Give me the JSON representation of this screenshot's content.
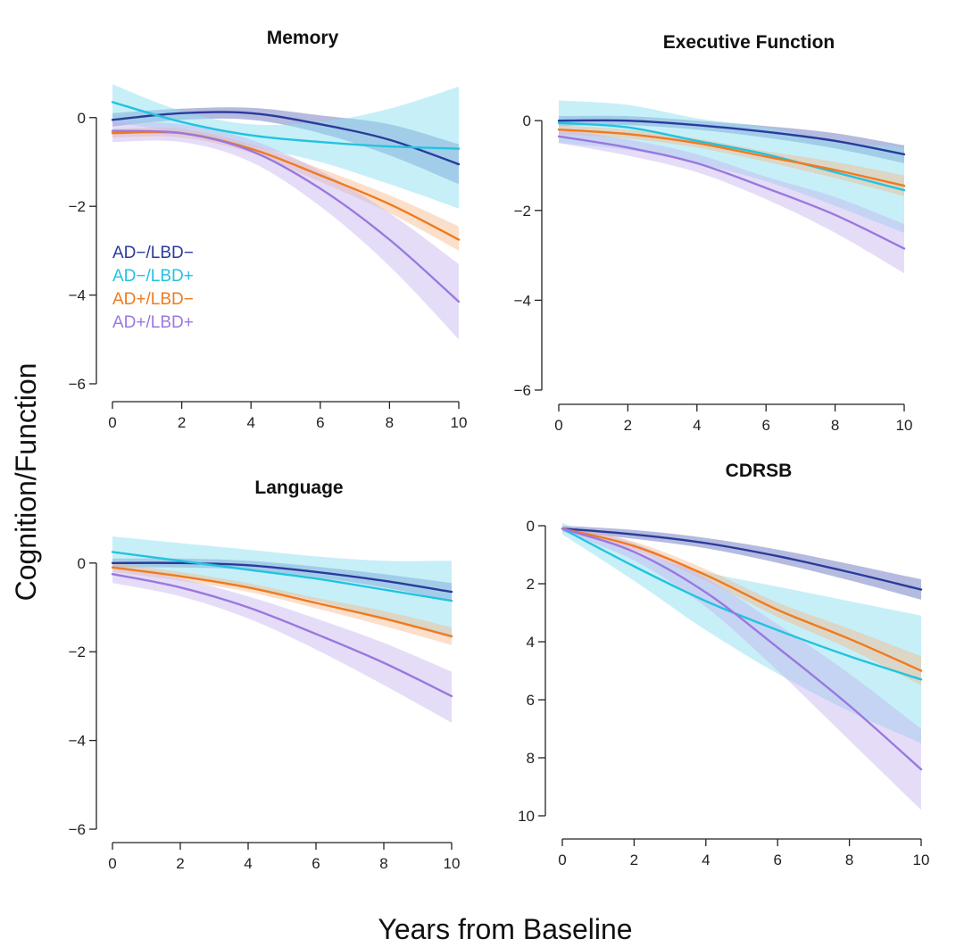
{
  "figure": {
    "ylabel": "Cognition/Function",
    "xlabel": "Years from Baseline"
  },
  "legend": {
    "entries": [
      {
        "label": "AD−/LBD−",
        "color": "#2b3a9c"
      },
      {
        "label": "AD−/LBD+",
        "color": "#22c3e0"
      },
      {
        "label": "AD+/LBD−",
        "color": "#f07a1f"
      },
      {
        "label": "AD+/LBD+",
        "color": "#9a78e0"
      }
    ]
  },
  "chart_data": [
    {
      "type": "line",
      "title": "Memory",
      "xlim": [
        0,
        10
      ],
      "ylim": [
        -6,
        0.8
      ],
      "x_ticks": [
        0,
        2,
        4,
        6,
        8,
        10
      ],
      "y_ticks": [
        0,
        -2,
        -4,
        -6
      ],
      "y_tick_labels": [
        "0",
        "−2",
        "−4",
        "−6"
      ],
      "x": [
        0,
        2,
        4,
        6,
        8,
        10
      ],
      "series": [
        {
          "name": "AD−/LBD−",
          "color": "#2b3a9c",
          "band_color": "#5868b8",
          "values": [
            -0.05,
            0.1,
            0.1,
            -0.15,
            -0.5,
            -1.05
          ],
          "lower": [
            -0.2,
            -0.05,
            -0.05,
            -0.35,
            -0.85,
            -1.5
          ],
          "upper": [
            0.1,
            0.2,
            0.22,
            0.05,
            -0.15,
            -0.6
          ]
        },
        {
          "name": "AD−/LBD+",
          "color": "#22c3e0",
          "band_color": "#8fe0f2",
          "values": [
            0.35,
            -0.1,
            -0.4,
            -0.55,
            -0.65,
            -0.7
          ],
          "lower": [
            -0.1,
            -0.35,
            -0.65,
            -1.0,
            -1.5,
            -2.05
          ],
          "upper": [
            0.75,
            0.15,
            -0.15,
            -0.1,
            0.2,
            0.7
          ]
        },
        {
          "name": "AD+/LBD−",
          "color": "#f07a1f",
          "band_color": "#f7b98a",
          "values": [
            -0.35,
            -0.35,
            -0.7,
            -1.3,
            -1.95,
            -2.75
          ],
          "lower": [
            -0.45,
            -0.45,
            -0.8,
            -1.45,
            -2.15,
            -3.0
          ],
          "upper": [
            -0.25,
            -0.25,
            -0.6,
            -1.15,
            -1.75,
            -2.45
          ]
        },
        {
          "name": "AD+/LBD+",
          "color": "#9a78e0",
          "band_color": "#c6b3ef",
          "values": [
            -0.3,
            -0.35,
            -0.75,
            -1.6,
            -2.75,
            -4.15
          ],
          "lower": [
            -0.55,
            -0.55,
            -1.0,
            -2.0,
            -3.35,
            -5.0
          ],
          "upper": [
            -0.1,
            -0.15,
            -0.5,
            -1.2,
            -2.15,
            -3.3
          ]
        }
      ]
    },
    {
      "type": "line",
      "title": "Executive Function",
      "xlim": [
        0,
        10
      ],
      "ylim": [
        -6,
        0.5
      ],
      "x_ticks": [
        0,
        2,
        4,
        6,
        8,
        10
      ],
      "y_ticks": [
        0,
        -2,
        -4,
        -6
      ],
      "y_tick_labels": [
        "0",
        "−2",
        "−4",
        "−6"
      ],
      "x": [
        0,
        2,
        4,
        6,
        8,
        10
      ],
      "series": [
        {
          "name": "AD−/LBD−",
          "color": "#2b3a9c",
          "band_color": "#5868b8",
          "values": [
            0.0,
            0.0,
            -0.1,
            -0.25,
            -0.45,
            -0.75
          ],
          "lower": [
            -0.12,
            -0.1,
            -0.2,
            -0.38,
            -0.62,
            -0.95
          ],
          "upper": [
            0.1,
            0.1,
            0.0,
            -0.12,
            -0.28,
            -0.55
          ]
        },
        {
          "name": "AD−/LBD+",
          "color": "#22c3e0",
          "band_color": "#8fe0f2",
          "values": [
            -0.05,
            -0.15,
            -0.45,
            -0.75,
            -1.15,
            -1.55
          ],
          "lower": [
            -0.5,
            -0.65,
            -0.95,
            -1.35,
            -1.9,
            -2.5
          ],
          "upper": [
            0.45,
            0.35,
            0.05,
            -0.15,
            -0.45,
            -0.6
          ]
        },
        {
          "name": "AD+/LBD−",
          "color": "#f07a1f",
          "band_color": "#f7b98a",
          "values": [
            -0.2,
            -0.3,
            -0.5,
            -0.8,
            -1.1,
            -1.45
          ],
          "lower": [
            -0.3,
            -0.4,
            -0.6,
            -0.92,
            -1.28,
            -1.68
          ],
          "upper": [
            -0.1,
            -0.2,
            -0.4,
            -0.68,
            -0.92,
            -1.22
          ]
        },
        {
          "name": "AD+/LBD+",
          "color": "#9a78e0",
          "band_color": "#c6b3ef",
          "values": [
            -0.35,
            -0.6,
            -0.95,
            -1.5,
            -2.1,
            -2.85
          ],
          "lower": [
            -0.5,
            -0.78,
            -1.15,
            -1.75,
            -2.5,
            -3.4
          ],
          "upper": [
            -0.2,
            -0.42,
            -0.75,
            -1.25,
            -1.7,
            -2.3
          ]
        }
      ]
    },
    {
      "type": "line",
      "title": "Language",
      "xlim": [
        0,
        10
      ],
      "ylim": [
        -6,
        0.6
      ],
      "x_ticks": [
        0,
        2,
        4,
        6,
        8,
        10
      ],
      "y_ticks": [
        0,
        -2,
        -4,
        -6
      ],
      "y_tick_labels": [
        "0",
        "−2",
        "−4",
        "−6"
      ],
      "x": [
        0,
        2,
        4,
        6,
        8,
        10
      ],
      "series": [
        {
          "name": "AD−/LBD−",
          "color": "#2b3a9c",
          "band_color": "#5868b8",
          "values": [
            0.0,
            0.0,
            -0.05,
            -0.2,
            -0.4,
            -0.65
          ],
          "lower": [
            -0.1,
            -0.1,
            -0.15,
            -0.32,
            -0.55,
            -0.85
          ],
          "upper": [
            0.1,
            0.1,
            0.05,
            -0.08,
            -0.25,
            -0.45
          ]
        },
        {
          "name": "AD−/LBD+",
          "color": "#22c3e0",
          "band_color": "#8fe0f2",
          "values": [
            0.25,
            0.05,
            -0.15,
            -0.35,
            -0.6,
            -0.85
          ],
          "lower": [
            -0.1,
            -0.3,
            -0.55,
            -0.85,
            -1.25,
            -1.7
          ],
          "upper": [
            0.6,
            0.45,
            0.3,
            0.15,
            0.05,
            0.05
          ]
        },
        {
          "name": "AD+/LBD−",
          "color": "#f07a1f",
          "band_color": "#f7b98a",
          "values": [
            -0.1,
            -0.3,
            -0.55,
            -0.9,
            -1.25,
            -1.65
          ],
          "lower": [
            -0.2,
            -0.4,
            -0.65,
            -1.02,
            -1.42,
            -1.85
          ],
          "upper": [
            0.0,
            -0.2,
            -0.45,
            -0.78,
            -1.08,
            -1.45
          ]
        },
        {
          "name": "AD+/LBD+",
          "color": "#9a78e0",
          "band_color": "#c6b3ef",
          "values": [
            -0.25,
            -0.55,
            -1.0,
            -1.6,
            -2.25,
            -3.0
          ],
          "lower": [
            -0.45,
            -0.75,
            -1.25,
            -1.95,
            -2.75,
            -3.6
          ],
          "upper": [
            -0.05,
            -0.35,
            -0.75,
            -1.25,
            -1.8,
            -2.45
          ]
        }
      ]
    },
    {
      "type": "line",
      "title": "CDRSB",
      "xlim": [
        0,
        10
      ],
      "ylim": [
        10,
        0
      ],
      "x_ticks": [
        0,
        2,
        4,
        6,
        8,
        10
      ],
      "y_ticks": [
        0,
        2,
        4,
        6,
        8,
        10
      ],
      "y_tick_labels": [
        "0",
        "2",
        "4",
        "6",
        "8",
        "10"
      ],
      "x": [
        0,
        2,
        4,
        6,
        8,
        10
      ],
      "series": [
        {
          "name": "AD−/LBD−",
          "color": "#2b3a9c",
          "band_color": "#5868b8",
          "values": [
            0.1,
            0.3,
            0.6,
            1.05,
            1.6,
            2.2
          ],
          "lower": [
            0.0,
            0.15,
            0.42,
            0.82,
            1.32,
            1.85
          ],
          "upper": [
            0.2,
            0.45,
            0.78,
            1.28,
            1.88,
            2.55
          ]
        },
        {
          "name": "AD−/LBD+",
          "color": "#22c3e0",
          "band_color": "#8fe0f2",
          "values": [
            0.1,
            1.4,
            2.6,
            3.6,
            4.5,
            5.3
          ],
          "lower": [
            -0.1,
            0.9,
            1.6,
            2.1,
            2.6,
            3.1
          ],
          "upper": [
            0.3,
            1.9,
            3.6,
            5.1,
            6.4,
            7.5
          ]
        },
        {
          "name": "AD+/LBD−",
          "color": "#f07a1f",
          "band_color": "#f7b98a",
          "values": [
            0.1,
            0.7,
            1.7,
            2.9,
            3.9,
            5.0
          ],
          "lower": [
            0.0,
            0.55,
            1.5,
            2.65,
            3.55,
            4.5
          ],
          "upper": [
            0.2,
            0.85,
            1.9,
            3.15,
            4.25,
            5.5
          ]
        },
        {
          "name": "AD+/LBD+",
          "color": "#9a78e0",
          "band_color": "#c6b3ef",
          "values": [
            0.1,
            0.9,
            2.3,
            4.2,
            6.2,
            8.4
          ],
          "lower": [
            0.0,
            0.6,
            1.8,
            3.4,
            5.1,
            7.0
          ],
          "upper": [
            0.2,
            1.2,
            2.8,
            5.0,
            7.4,
            9.8
          ]
        }
      ]
    }
  ]
}
